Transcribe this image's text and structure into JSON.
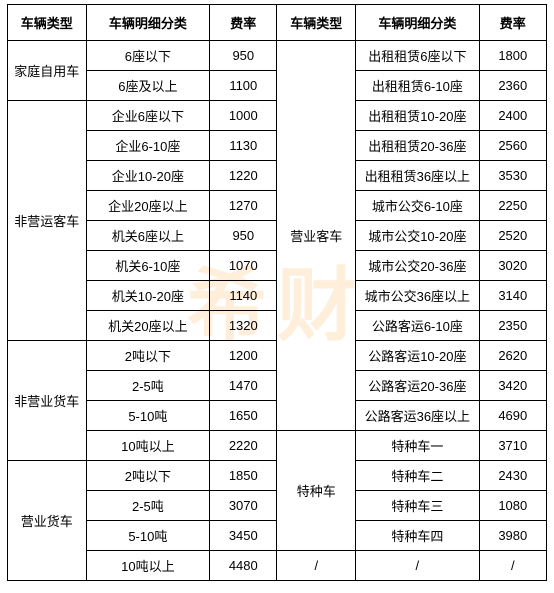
{
  "watermark": "希财",
  "headers": {
    "vehicle_type": "车辆类型",
    "detail_class": "车辆明细分类",
    "rate": "费率"
  },
  "left": {
    "groups": [
      {
        "type": "家庭自用车",
        "rows": [
          {
            "detail": "6座以下",
            "rate": "950"
          },
          {
            "detail": "6座及以上",
            "rate": "1100"
          }
        ]
      },
      {
        "type": "非营运客车",
        "rows": [
          {
            "detail": "企业6座以下",
            "rate": "1000"
          },
          {
            "detail": "企业6-10座",
            "rate": "1130"
          },
          {
            "detail": "企业10-20座",
            "rate": "1220"
          },
          {
            "detail": "企业20座以上",
            "rate": "1270"
          },
          {
            "detail": "机关6座以上",
            "rate": "950"
          },
          {
            "detail": "机关6-10座",
            "rate": "1070"
          },
          {
            "detail": "机关10-20座",
            "rate": "1140"
          },
          {
            "detail": "机关20座以上",
            "rate": "1320"
          }
        ]
      },
      {
        "type": "非营业货车",
        "rows": [
          {
            "detail": "2吨以下",
            "rate": "1200"
          },
          {
            "detail": "2-5吨",
            "rate": "1470"
          },
          {
            "detail": "5-10吨",
            "rate": "1650"
          },
          {
            "detail": "10吨以上",
            "rate": "2220"
          }
        ]
      },
      {
        "type": "营业货车",
        "rows": [
          {
            "detail": "2吨以下",
            "rate": "1850"
          },
          {
            "detail": "2-5吨",
            "rate": "3070"
          },
          {
            "detail": "5-10吨",
            "rate": "3450"
          },
          {
            "detail": "10吨以上",
            "rate": "4480"
          }
        ]
      }
    ]
  },
  "right": {
    "groups": [
      {
        "type": "营业客车",
        "rows": [
          {
            "detail": "出租租赁6座以下",
            "rate": "1800"
          },
          {
            "detail": "出租租赁6-10座",
            "rate": "2360"
          },
          {
            "detail": "出租租赁10-20座",
            "rate": "2400"
          },
          {
            "detail": "出租租赁20-36座",
            "rate": "2560"
          },
          {
            "detail": "出租租赁36座以上",
            "rate": "3530"
          },
          {
            "detail": "城市公交6-10座",
            "rate": "2250"
          },
          {
            "detail": "城市公交10-20座",
            "rate": "2520"
          },
          {
            "detail": "城市公交20-36座",
            "rate": "3020"
          },
          {
            "detail": "城市公交36座以上",
            "rate": "3140"
          },
          {
            "detail": "公路客运6-10座",
            "rate": "2350"
          },
          {
            "detail": "公路客运10-20座",
            "rate": "2620"
          },
          {
            "detail": "公路客运20-36座",
            "rate": "3420"
          },
          {
            "detail": "公路客运36座以上",
            "rate": "4690"
          }
        ]
      },
      {
        "type": "特种车",
        "rows": [
          {
            "detail": "特种车一",
            "rate": "3710"
          },
          {
            "detail": "特种车二",
            "rate": "2430"
          },
          {
            "detail": "特种车三",
            "rate": "1080"
          },
          {
            "detail": "特种车四",
            "rate": "3980"
          }
        ]
      },
      {
        "type": "/",
        "rows": [
          {
            "detail": "/",
            "rate": "/"
          }
        ]
      }
    ]
  }
}
